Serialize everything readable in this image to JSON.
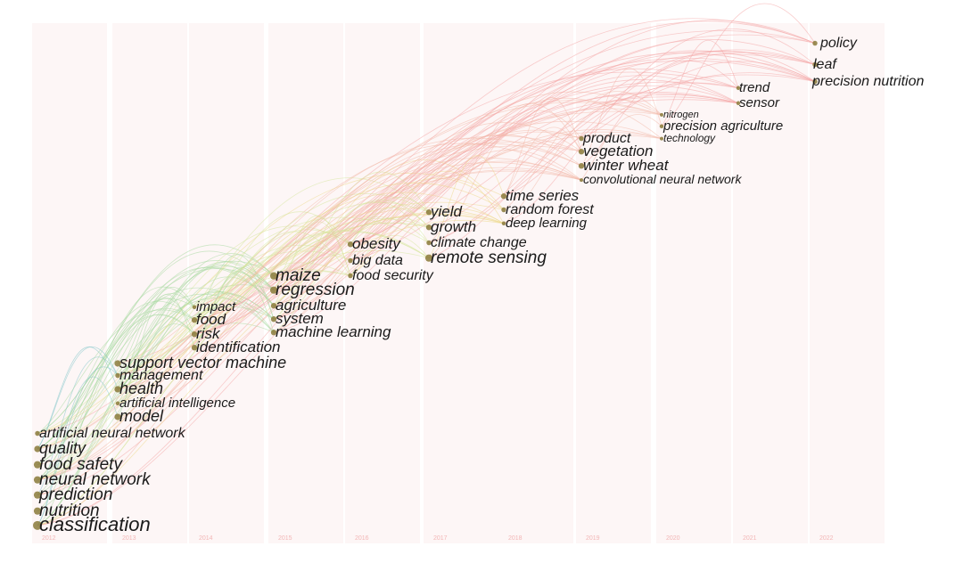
{
  "timeline": {
    "years": [
      "2012",
      "2013",
      "2014",
      "2015",
      "2016",
      "2017",
      "2018",
      "2019",
      "2020",
      "2021",
      "2022"
    ]
  },
  "keywords": [
    {
      "label": "classification",
      "year": "2012"
    },
    {
      "label": "nutrition",
      "year": "2012"
    },
    {
      "label": "prediction",
      "year": "2012"
    },
    {
      "label": "neural network",
      "year": "2012"
    },
    {
      "label": "food safety",
      "year": "2012"
    },
    {
      "label": "quality",
      "year": "2012"
    },
    {
      "label": "artificial neural network",
      "year": "2012"
    },
    {
      "label": "model",
      "year": "2013"
    },
    {
      "label": "artificial intelligence",
      "year": "2013"
    },
    {
      "label": "health",
      "year": "2013"
    },
    {
      "label": "management",
      "year": "2013"
    },
    {
      "label": "support vector machine",
      "year": "2013"
    },
    {
      "label": "identification",
      "year": "2014"
    },
    {
      "label": "risk",
      "year": "2014"
    },
    {
      "label": "food",
      "year": "2014"
    },
    {
      "label": "impact",
      "year": "2014"
    },
    {
      "label": "machine learning",
      "year": "2015"
    },
    {
      "label": "system",
      "year": "2015"
    },
    {
      "label": "agriculture",
      "year": "2015"
    },
    {
      "label": "regression",
      "year": "2015"
    },
    {
      "label": "maize",
      "year": "2015"
    },
    {
      "label": "food security",
      "year": "2016"
    },
    {
      "label": "big data",
      "year": "2016"
    },
    {
      "label": "obesity",
      "year": "2016"
    },
    {
      "label": "remote sensing",
      "year": "2017"
    },
    {
      "label": "climate change",
      "year": "2017"
    },
    {
      "label": "growth",
      "year": "2017"
    },
    {
      "label": "yield",
      "year": "2017"
    },
    {
      "label": "deep learning",
      "year": "2018"
    },
    {
      "label": "random forest",
      "year": "2018"
    },
    {
      "label": "time series",
      "year": "2018"
    },
    {
      "label": "convolutional neural network",
      "year": "2019"
    },
    {
      "label": "winter wheat",
      "year": "2019"
    },
    {
      "label": "vegetation",
      "year": "2019"
    },
    {
      "label": "product",
      "year": "2019"
    },
    {
      "label": "technology",
      "year": "2020"
    },
    {
      "label": "precision agriculture",
      "year": "2020"
    },
    {
      "label": "nitrogen",
      "year": "2020"
    },
    {
      "label": "sensor",
      "year": "2021"
    },
    {
      "label": "trend",
      "year": "2021"
    },
    {
      "label": "precision nutrition",
      "year": "2022"
    },
    {
      "label": "leaf",
      "year": "2022"
    },
    {
      "label": "policy",
      "year": "2022"
    }
  ],
  "colors": {
    "year_label": "#f2b6b6",
    "node": "#8a7a3a",
    "link_palette": [
      "#7fc4c8",
      "#a8d8a0",
      "#d6e59a",
      "#ecd98a",
      "#f2b8a8",
      "#f4a5a5"
    ]
  }
}
